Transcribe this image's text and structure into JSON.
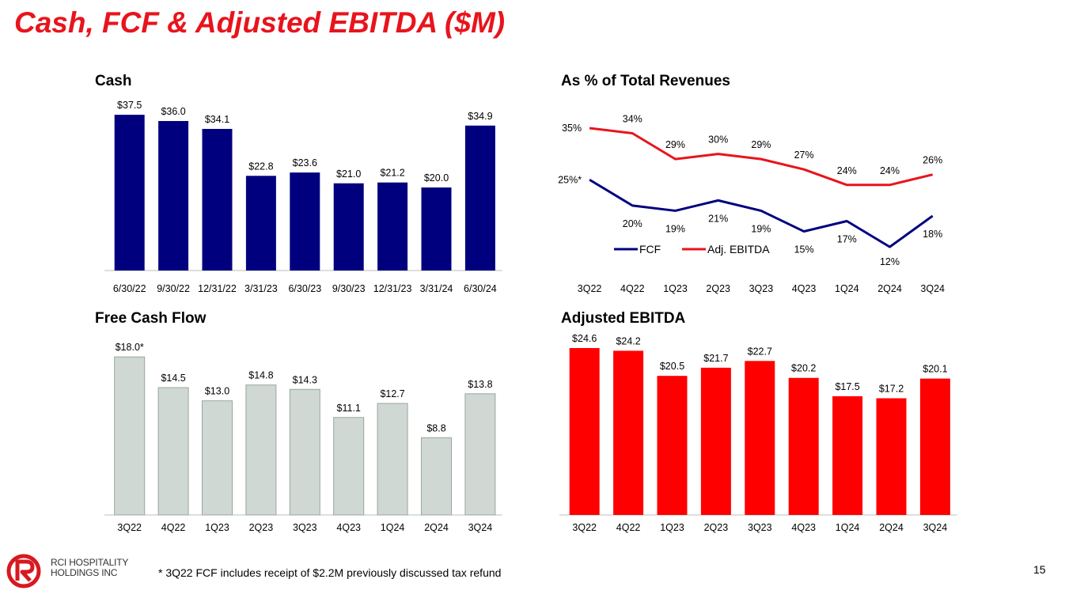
{
  "page": {
    "title": "Cash, FCF & Adjusted EBITDA ($M)",
    "footnote": "* 3Q22 FCF includes receipt of $2.2M previously discussed tax refund",
    "page_number": "15",
    "logo": {
      "line1": "RCI HOSPITALITY",
      "line2": "HOLDINGS INC",
      "icon": "rci-logo-icon",
      "color": "#d71920"
    }
  },
  "chart_data": [
    {
      "id": "cash",
      "type": "bar",
      "title": "Cash",
      "categories": [
        "6/30/22",
        "9/30/22",
        "12/31/22",
        "3/31/23",
        "6/30/23",
        "9/30/23",
        "12/31/23",
        "3/31/24",
        "6/30/24"
      ],
      "values": [
        37.5,
        36.0,
        34.1,
        22.8,
        23.6,
        21.0,
        21.2,
        20.0,
        34.9
      ],
      "labels": [
        "$37.5",
        "$36.0",
        "$34.1",
        "$22.8",
        "$23.6",
        "$21.0",
        "$21.2",
        "$20.0",
        "$34.9"
      ],
      "color": "#00007e",
      "ylim": [
        0,
        40
      ]
    },
    {
      "id": "pct",
      "type": "line",
      "title": "As % of Total Revenues",
      "categories": [
        "3Q22",
        "4Q22",
        "1Q23",
        "2Q23",
        "3Q23",
        "4Q23",
        "1Q24",
        "2Q24",
        "3Q24"
      ],
      "series": [
        {
          "name": "FCF",
          "color": "#00007e",
          "values": [
            25,
            20,
            19,
            21,
            19,
            15,
            17,
            12,
            18
          ],
          "labels": [
            "25%*",
            "20%",
            "19%",
            "21%",
            "19%",
            "15%",
            "17%",
            "12%",
            "18%"
          ]
        },
        {
          "name": "Adj. EBITDA",
          "color": "#e8141c",
          "values": [
            35,
            34,
            29,
            30,
            29,
            27,
            24,
            24,
            26
          ],
          "labels": [
            "35%",
            "34%",
            "29%",
            "30%",
            "29%",
            "27%",
            "24%",
            "24%",
            "26%"
          ]
        }
      ],
      "legend": "bottom-left"
    },
    {
      "id": "fcf",
      "type": "bar",
      "title": "Free Cash Flow",
      "categories": [
        "3Q22",
        "4Q22",
        "1Q23",
        "2Q23",
        "3Q23",
        "4Q23",
        "1Q24",
        "2Q24",
        "3Q24"
      ],
      "values": [
        18.0,
        14.5,
        13.0,
        14.8,
        14.3,
        11.1,
        12.7,
        8.8,
        13.8
      ],
      "labels": [
        "$18.0*",
        "$14.5",
        "$13.0",
        "$14.8",
        "$14.3",
        "$11.1",
        "$12.7",
        "$8.8",
        "$13.8"
      ],
      "color": "#d0d8d3",
      "stroke": "#9aa59f",
      "ylim": [
        0,
        20
      ]
    },
    {
      "id": "ebitda",
      "type": "bar",
      "title": "Adjusted EBITDA",
      "categories": [
        "3Q22",
        "4Q22",
        "1Q23",
        "2Q23",
        "3Q23",
        "4Q23",
        "1Q24",
        "2Q24",
        "3Q24"
      ],
      "values": [
        24.6,
        24.2,
        20.5,
        21.7,
        22.7,
        20.2,
        17.5,
        17.2,
        20.1
      ],
      "labels": [
        "$24.6",
        "$24.2",
        "$20.5",
        "$21.7",
        "$22.7",
        "$20.2",
        "$17.5",
        "$17.2",
        "$20.1"
      ],
      "color": "#ff0000",
      "ylim": [
        0,
        26
      ]
    }
  ]
}
